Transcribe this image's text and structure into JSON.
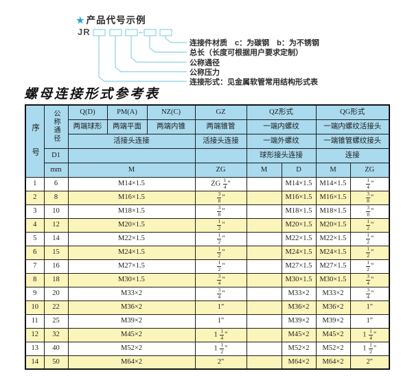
{
  "diagram": {
    "star_icon": "★",
    "title": "产品代号示例",
    "code_prefix": "JR",
    "labels": [
      "连接件材质　c：为碳钢　b：为不锈钢",
      "总长（长度可根据用户要求定制）",
      "公称通径",
      "公称压力",
      "连接形式：见金属软管常用结构形式表"
    ]
  },
  "table": {
    "title": "螺母连接形式参考表",
    "header": {
      "seq": "序号",
      "nominal_diameter": "公称通径",
      "d1": "D1",
      "mm": "mm",
      "q_code": "Q(D)",
      "q_desc": "两端球形",
      "pm_code": "PM(A)",
      "pm_desc": "两端平面",
      "nz_code": "NZ(C)",
      "nz_desc": "两端内锥",
      "union_conn": "活接头连接",
      "m_unit": "M",
      "gz_code": "GZ",
      "gz_desc": "两端锥管",
      "gz_conn": "活接头连接",
      "gz_unit": "ZG",
      "qz_code": "QZ形式",
      "qz_row2": "一端内螺纹",
      "qz_row3": "一端外螺纹",
      "qz_row4": "球形接头连接",
      "qz_m_unit": "M",
      "qz_d_unit": "D",
      "qg_code": "QG形式",
      "qg_row2": "一端内螺纹活接头",
      "qg_row3": "一端锥管螺纹接头",
      "qg_row4": "连接",
      "qg_m_unit": "M",
      "qg_zg_unit": "ZG"
    },
    "rows": [
      [
        "1",
        "6",
        "M14×1.5",
        "ZG 1/4\"",
        "",
        "M14×1.5",
        "M14×1.5",
        "1/4\""
      ],
      [
        "2",
        "8",
        "M16×1.5",
        "3/8\"",
        "",
        "M16×1.5",
        "M16×1.5",
        "3/8\""
      ],
      [
        "3",
        "10",
        "M18×1.5",
        "3/8\"",
        "",
        "M18×1.5",
        "M18×1.5",
        "3/8\""
      ],
      [
        "4",
        "12",
        "M20×1.5",
        "1/2\"",
        "",
        "M20×1.5",
        "M20×1.5",
        "1/2\""
      ],
      [
        "5",
        "14",
        "M22×1.5",
        "1/2\"",
        "",
        "M22×1.5",
        "M22×1.5",
        "1/2\""
      ],
      [
        "6",
        "15",
        "M24×1.5",
        "1/2\"",
        "",
        "M24×1.5",
        "M24×1.5",
        "1/2\""
      ],
      [
        "7",
        "16",
        "M27×1.5",
        "1/2\"",
        "",
        "M27×1.5",
        "M27×1.5",
        "1/2\""
      ],
      [
        "8",
        "18",
        "M30×1.5",
        "3/4\"",
        "",
        "M30×1.5",
        "M30×1.5",
        "3/4\""
      ],
      [
        "9",
        "20",
        "M33×2",
        "3/4\"",
        "",
        "M33×2",
        "M33×2",
        "3/4\""
      ],
      [
        "10",
        "22",
        "M36×2",
        "1\"",
        "",
        "M36×2",
        "M36×2",
        "1\""
      ],
      [
        "11",
        "25",
        "M39×2",
        "1\"",
        "",
        "M39×2",
        "M39×2",
        "1\""
      ],
      [
        "12",
        "32",
        "M45×2",
        "1 1/4\"",
        "",
        "M45×2",
        "M45×2",
        "1 1/4\""
      ],
      [
        "13",
        "40",
        "M52×2",
        "1 1/2\"",
        "",
        "M52×2",
        "M52×2",
        "1 1/2\""
      ],
      [
        "14",
        "50",
        "M64×2",
        "2\"",
        "",
        "M64×2",
        "M64×2",
        "2\""
      ]
    ]
  },
  "colors": {
    "header_bg": "#aadaee",
    "row_alt_bg": "#fcf5bb",
    "row_bg": "#ffffff",
    "border": "#1b1b1b",
    "diagram_line": "#9bd7e8",
    "star": "#29a0d8"
  }
}
